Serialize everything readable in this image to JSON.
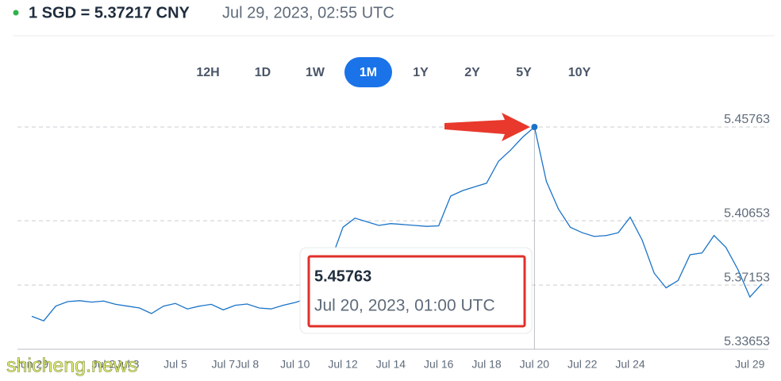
{
  "header": {
    "rate": "1 SGD = 5.37217 CNY",
    "timestamp": "Jul 29, 2023, 02:55 UTC"
  },
  "range_tabs": [
    "12H",
    "1D",
    "1W",
    "1M",
    "1Y",
    "2Y",
    "5Y",
    "10Y"
  ],
  "active_tab": "1M",
  "chart_data": {
    "type": "line",
    "color": "#1a73c8",
    "grid": true,
    "x": [
      "Jun 29",
      null,
      null,
      null,
      null,
      null,
      "Jul 2",
      null,
      "Jul 3",
      null,
      null,
      null,
      "Jul 5",
      null,
      null,
      null,
      "Jul 7",
      null,
      "Jul 8",
      null,
      null,
      null,
      "Jul 10",
      null,
      null,
      null,
      "Jul 12",
      null,
      null,
      null,
      "Jul 14",
      null,
      null,
      null,
      "Jul 16",
      null,
      null,
      null,
      "Jul 18",
      null,
      null,
      null,
      "Jul 20",
      null,
      null,
      null,
      "Jul 22",
      null,
      null,
      null,
      "Jul 24",
      null,
      null,
      null,
      null,
      null,
      null,
      null,
      null,
      null,
      "Jul 29",
      null
    ],
    "values": [
      5.3545,
      5.352,
      5.36,
      5.3625,
      5.363,
      5.3622,
      5.3628,
      5.361,
      5.36,
      5.359,
      5.356,
      5.36,
      5.3615,
      5.3585,
      5.36,
      5.361,
      5.358,
      5.3605,
      5.3612,
      5.359,
      5.3585,
      5.3605,
      5.362,
      5.364,
      5.366,
      5.385,
      5.403,
      5.408,
      5.406,
      5.404,
      5.405,
      5.4045,
      5.404,
      5.4035,
      5.4038,
      5.42,
      5.423,
      5.425,
      5.427,
      5.439,
      5.445,
      5.452,
      5.45763,
      5.428,
      5.413,
      5.403,
      5.4,
      5.398,
      5.3985,
      5.4,
      5.4085,
      5.396,
      5.378,
      5.37,
      5.374,
      5.388,
      5.389,
      5.3985,
      5.392,
      5.38,
      5.365,
      5.37217
    ],
    "ylim": [
      5.33653,
      5.45763
    ],
    "yticks": [
      5.33653,
      5.37153,
      5.40653,
      5.45763
    ]
  },
  "tooltip": {
    "value": "5.45763",
    "date": "Jul 20, 2023, 01:00 UTC"
  },
  "watermark": "shicheng.news"
}
